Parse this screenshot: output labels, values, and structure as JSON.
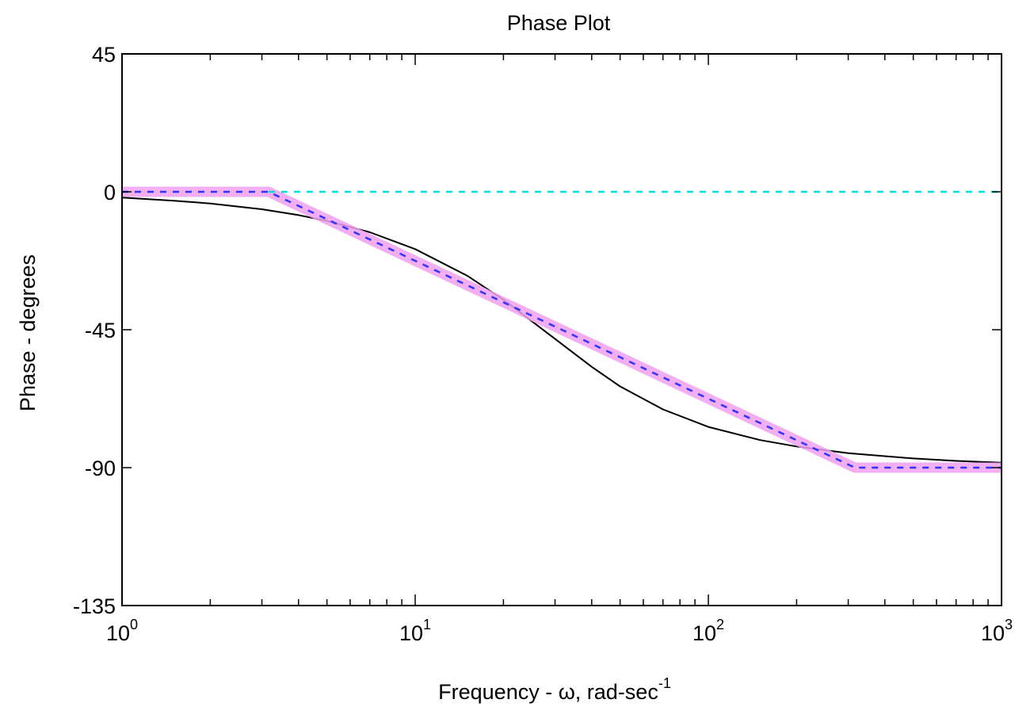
{
  "chart_data": {
    "type": "line",
    "title": "Phase Plot",
    "xlabel": "Frequency - ω, rad-sec",
    "xlabel_superscript": "-1",
    "ylabel": "Phase - degrees",
    "x_scale": "log",
    "xlim": [
      1,
      1000
    ],
    "ylim": [
      -135,
      45
    ],
    "x_ticks": [
      {
        "value": 1,
        "base": "10",
        "exp": "0"
      },
      {
        "value": 10,
        "base": "10",
        "exp": "1"
      },
      {
        "value": 100,
        "base": "10",
        "exp": "2"
      },
      {
        "value": 1000,
        "base": "10",
        "exp": "3"
      }
    ],
    "y_ticks": [
      {
        "value": 45,
        "label": "45"
      },
      {
        "value": 0,
        "label": "0"
      },
      {
        "value": -45,
        "label": "-45"
      },
      {
        "value": -90,
        "label": "-90"
      },
      {
        "value": -135,
        "label": "-135"
      }
    ],
    "grid": false,
    "series": [
      {
        "style": "solid",
        "color": "#000000",
        "x": [
          1,
          1.5,
          2,
          3,
          4,
          5,
          7,
          10,
          15,
          20,
          30,
          40,
          50,
          70,
          100,
          150,
          200,
          300,
          500,
          700,
          1000
        ],
        "y": [
          -1.9,
          -2.9,
          -3.8,
          -5.7,
          -7.6,
          -9.5,
          -13.2,
          -18.7,
          -27.3,
          -35.2,
          -48.0,
          -57.1,
          -63.5,
          -71.0,
          -76.7,
          -81.0,
          -83.1,
          -85.3,
          -87.0,
          -87.8,
          -88.4
        ]
      },
      {
        "style": "highlight-band",
        "color": "#f0a0f0",
        "x": [
          1,
          3.16,
          316,
          1000
        ],
        "y": [
          0,
          0,
          -90,
          -90
        ]
      },
      {
        "style": "dashed",
        "color": "#3333ff",
        "x": [
          1,
          3.16,
          316,
          1000
        ],
        "y": [
          0,
          0,
          -90,
          -90
        ]
      },
      {
        "style": "dashed",
        "color": "#00e0e0",
        "x": [
          3.16,
          1000
        ],
        "y": [
          0,
          0
        ]
      }
    ]
  }
}
